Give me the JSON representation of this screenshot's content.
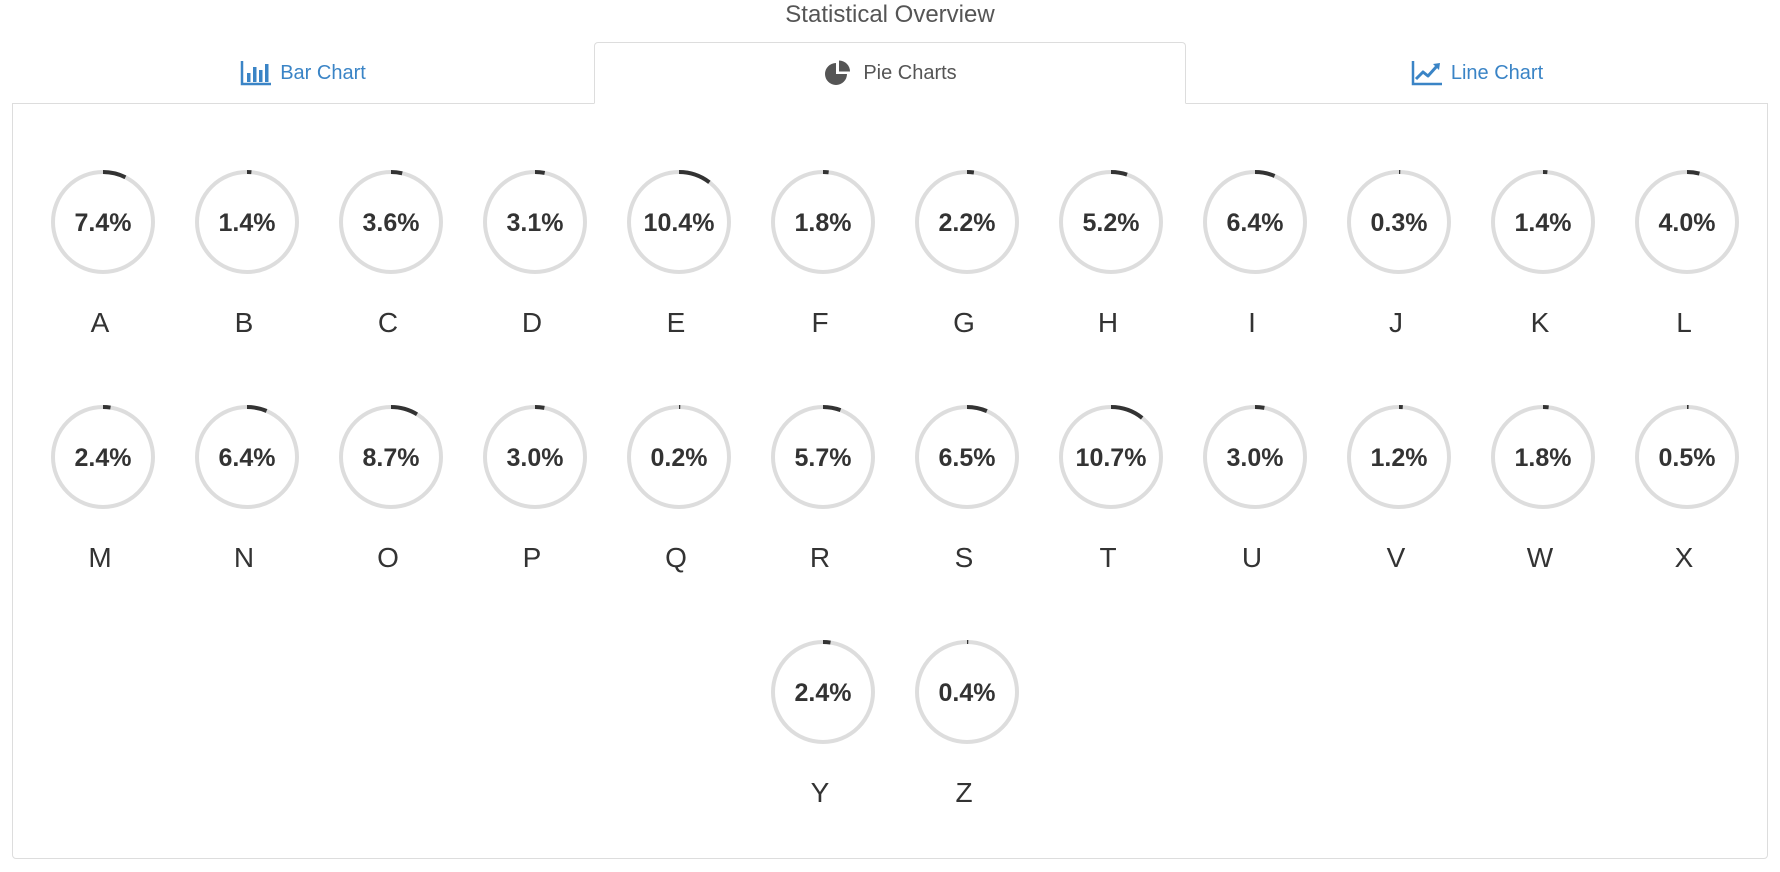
{
  "header": {
    "title": "Statistical Overview"
  },
  "tabs": [
    {
      "label": "Bar Chart",
      "icon": "bar-chart-icon",
      "active": false
    },
    {
      "label": "Pie Charts",
      "icon": "pie-chart-icon",
      "active": true
    },
    {
      "label": "Line Chart",
      "icon": "line-chart-icon",
      "active": false
    }
  ],
  "colors": {
    "accent": "#3a84c6",
    "ring_track": "#dddddd",
    "ring_fill": "#333333",
    "border": "#dddddd"
  },
  "chart_data": {
    "type": "pie",
    "categories": [
      "A",
      "B",
      "C",
      "D",
      "E",
      "F",
      "G",
      "H",
      "I",
      "J",
      "K",
      "L",
      "M",
      "N",
      "O",
      "P",
      "Q",
      "R",
      "S",
      "T",
      "U",
      "V",
      "W",
      "X",
      "Y",
      "Z"
    ],
    "values": [
      7.4,
      1.4,
      3.6,
      3.1,
      10.4,
      1.8,
      2.2,
      5.2,
      6.4,
      0.3,
      1.4,
      4.0,
      2.4,
      6.4,
      8.7,
      3.0,
      0.2,
      5.7,
      6.5,
      10.7,
      3.0,
      1.2,
      1.8,
      0.5,
      2.4,
      0.4
    ],
    "labels": [
      "7.4%",
      "1.4%",
      "3.6%",
      "3.1%",
      "10.4%",
      "1.8%",
      "2.2%",
      "5.2%",
      "6.4%",
      "0.3%",
      "1.4%",
      "4.0%",
      "2.4%",
      "6.4%",
      "8.7%",
      "3.0%",
      "0.2%",
      "5.7%",
      "6.5%",
      "10.7%",
      "3.0%",
      "1.2%",
      "1.8%",
      "0.5%",
      "2.4%",
      "0.4%"
    ],
    "unit": "%",
    "per_row": 12
  }
}
